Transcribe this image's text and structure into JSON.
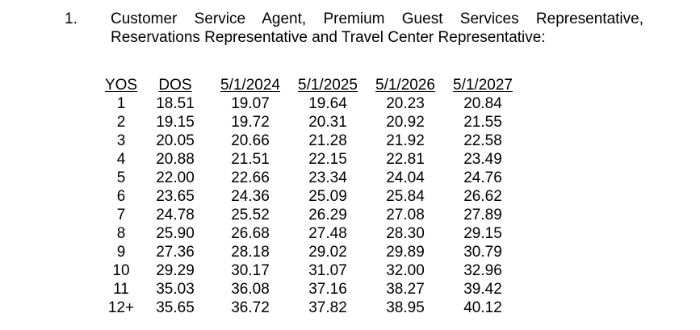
{
  "section": {
    "number": "1.",
    "title_line_1": "Customer Service Agent, Premium Guest Services Representative,",
    "title_line_2": "Reservations Representative and Travel Center Representative:"
  },
  "table": {
    "headers": [
      "YOS",
      "DOS",
      "5/1/2024",
      "5/1/2025",
      "5/1/2026",
      "5/1/2027"
    ],
    "rows": [
      [
        "1",
        "18.51",
        "19.07",
        "19.64",
        "20.23",
        "20.84"
      ],
      [
        "2",
        "19.15",
        "19.72",
        "20.31",
        "20.92",
        "21.55"
      ],
      [
        "3",
        "20.05",
        "20.66",
        "21.28",
        "21.92",
        "22.58"
      ],
      [
        "4",
        "20.88",
        "21.51",
        "22.15",
        "22.81",
        "23.49"
      ],
      [
        "5",
        "22.00",
        "22.66",
        "23.34",
        "24.04",
        "24.76"
      ],
      [
        "6",
        "23.65",
        "24.36",
        "25.09",
        "25.84",
        "26.62"
      ],
      [
        "7",
        "24.78",
        "25.52",
        "26.29",
        "27.08",
        "27.89"
      ],
      [
        "8",
        "25.90",
        "26.68",
        "27.48",
        "28.30",
        "29.15"
      ],
      [
        "9",
        "27.36",
        "28.18",
        "29.02",
        "29.89",
        "30.79"
      ],
      [
        "10",
        "29.29",
        "30.17",
        "31.07",
        "32.00",
        "32.96"
      ],
      [
        "11",
        "35.03",
        "36.08",
        "37.16",
        "38.27",
        "39.42"
      ],
      [
        "12+",
        "35.65",
        "36.72",
        "37.82",
        "38.95",
        "40.12"
      ]
    ]
  }
}
